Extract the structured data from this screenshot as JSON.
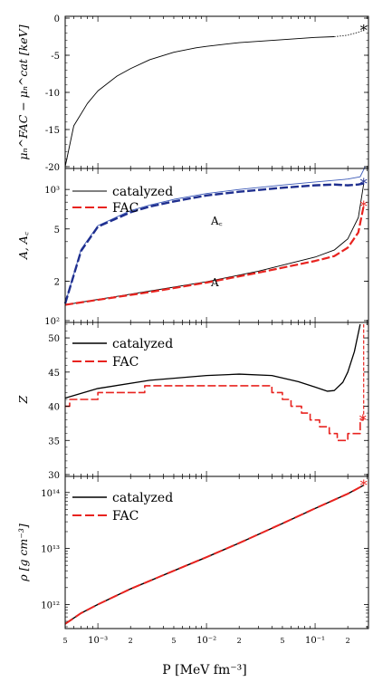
{
  "colors": {
    "catalyzed": "#000000",
    "fac": "#e8231f",
    "ac_thin": "#3c5ab8",
    "ac_fac": "#1f2f8f"
  },
  "xaxis": {
    "label": "P  [MeV fm⁻³]",
    "scale": "log",
    "xlim": [
      0.0005,
      0.31
    ],
    "major_ticks": [
      {
        "v": 0.001,
        "label": "10⁻³"
      },
      {
        "v": 0.01,
        "label": "10⁻²"
      },
      {
        "v": 0.1,
        "label": "10⁻¹"
      }
    ],
    "minor_label_ticks": [
      {
        "v": 0.0005,
        "label": "5"
      },
      {
        "v": 0.002,
        "label": "2"
      },
      {
        "v": 0.005,
        "label": "5"
      },
      {
        "v": 0.02,
        "label": "2"
      },
      {
        "v": 0.05,
        "label": "5"
      },
      {
        "v": 0.2,
        "label": "2"
      }
    ]
  },
  "chart_data": [
    {
      "type": "line",
      "ylabel": "μₙ^FAC − μₙ^cat  [keV]",
      "ylim": [
        -20,
        0
      ],
      "yticks": [
        0,
        -5,
        -10,
        -15,
        -20
      ],
      "ytick_labels": [
        "0",
        "-5",
        "-10",
        "-15",
        "-20"
      ],
      "series": [
        {
          "x": [
            0.0005,
            0.0006,
            0.0008,
            0.001,
            0.0015,
            0.002,
            0.003,
            0.005,
            0.008,
            0.01,
            0.02,
            0.05,
            0.1,
            0.15
          ],
          "y": [
            -20,
            -14.5,
            -11.5,
            -9.8,
            -7.8,
            -6.8,
            -5.6,
            -4.6,
            -4.0,
            -3.8,
            -3.3,
            -2.9,
            -2.6,
            -2.5
          ]
        },
        {
          "x": [
            0.15,
            0.2,
            0.25,
            0.28
          ],
          "y": [
            -2.5,
            -2.3,
            -1.9,
            -1.6
          ]
        }
      ],
      "markers": [
        {
          "x": 0.28,
          "y": -1.6,
          "symbol": "*"
        }
      ]
    },
    {
      "type": "line",
      "ylabel": "A, A꜀",
      "yscale": "log",
      "ylim": [
        100,
        1400
      ],
      "yticks": [
        100,
        200,
        500,
        1000
      ],
      "ytick_labels": [
        "10²",
        "2",
        "5",
        "10³"
      ],
      "annotations": [
        {
          "text": "A꜀",
          "x": 0.016,
          "y": 1060
        },
        {
          "text": "A",
          "x": 0.016,
          "y": 255
        }
      ],
      "legend": {
        "position": "top-left",
        "entries": [
          "catalyzed",
          "FAC"
        ]
      },
      "series": [
        {
          "name": "catalyzed",
          "x": [
            0.0005,
            0.001,
            0.003,
            0.01,
            0.03,
            0.1,
            0.15,
            0.2,
            0.25,
            0.28
          ],
          "y": [
            132,
            145,
            168,
            198,
            238,
            305,
            345,
            420,
            610,
            1100
          ]
        },
        {
          "name": "FAC",
          "x": [
            0.0005,
            0.001,
            0.003,
            0.01,
            0.03,
            0.1,
            0.15,
            0.2,
            0.25,
            0.28
          ],
          "y": [
            132,
            144,
            165,
            195,
            232,
            285,
            310,
            360,
            470,
            750
          ]
        },
        {
          "x": [
            0.0005,
            0.0007,
            0.001,
            0.002,
            0.003,
            0.005,
            0.01,
            0.02,
            0.05,
            0.1,
            0.2,
            0.26,
            0.29
          ],
          "y": [
            135,
            350,
            530,
            690,
            760,
            840,
            930,
            1000,
            1080,
            1140,
            1200,
            1250,
            1500
          ]
        },
        {
          "x": [
            0.0005,
            0.0007,
            0.001,
            0.002,
            0.003,
            0.005,
            0.01,
            0.02,
            0.05,
            0.1,
            0.15,
            0.2,
            0.25,
            0.28
          ],
          "y": [
            135,
            340,
            520,
            670,
            740,
            810,
            900,
            960,
            1030,
            1075,
            1090,
            1075,
            1090,
            1110
          ]
        }
      ],
      "markers": [
        {
          "x": 0.28,
          "y": 1110,
          "symbol": "*"
        },
        {
          "x": 0.28,
          "y": 750,
          "symbol": "*"
        }
      ]
    },
    {
      "type": "line",
      "ylabel": "Z",
      "ylim": [
        30,
        52
      ],
      "yticks": [
        30,
        35,
        40,
        45,
        50
      ],
      "ytick_labels": [
        "30",
        "35",
        "40",
        "45",
        "50"
      ],
      "legend": {
        "position": "top-left",
        "entries": [
          "catalyzed",
          "FAC"
        ]
      },
      "series": [
        {
          "name": "catalyzed",
          "x": [
            0.0005,
            0.001,
            0.003,
            0.01,
            0.02,
            0.04,
            0.07,
            0.1,
            0.13,
            0.15,
            0.18,
            0.2,
            0.23,
            0.26
          ],
          "y": [
            41.2,
            42.6,
            43.8,
            44.5,
            44.7,
            44.5,
            43.6,
            42.8,
            42.2,
            42.3,
            43.5,
            45,
            48,
            52
          ]
        },
        {
          "name": "FAC",
          "x": [
            0.0005,
            0.00055,
            0.00055,
            0.001,
            0.001,
            0.0027,
            0.0027,
            0.04,
            0.04,
            0.05,
            0.05,
            0.06,
            0.06,
            0.075,
            0.075,
            0.09,
            0.09,
            0.11,
            0.11,
            0.135,
            0.135,
            0.16,
            0.16,
            0.2,
            0.2,
            0.26,
            0.26,
            0.28
          ],
          "y": [
            40,
            40,
            41,
            41,
            42,
            42,
            43,
            43,
            42,
            42,
            41,
            41,
            40,
            40,
            39,
            39,
            38,
            38,
            37,
            37,
            36,
            36,
            35,
            35,
            36,
            36,
            38,
            38
          ]
        },
        {
          "x": [
            0.28,
            0.28
          ],
          "y": [
            38,
            52
          ]
        }
      ],
      "markers": [
        {
          "x": 0.275,
          "y": 38,
          "symbol": "*"
        }
      ]
    },
    {
      "type": "line",
      "ylabel": "ρ  [g cm⁻³]",
      "yscale": "log",
      "ylim": [
        400000000000.0,
        180000000000000.0
      ],
      "yticks": [
        1000000000000.0,
        10000000000000.0,
        100000000000000.0
      ],
      "ytick_labels": [
        "10¹²",
        "10¹³",
        "10¹⁴"
      ],
      "legend": {
        "position": "top-left",
        "entries": [
          "catalyzed",
          "FAC"
        ]
      },
      "series": [
        {
          "name": "catalyzed",
          "x": [
            0.0005,
            0.0007,
            0.001,
            0.002,
            0.005,
            0.01,
            0.02,
            0.05,
            0.1,
            0.2,
            0.28
          ],
          "y": [
            450000000000.0,
            700000000000.0,
            1000000000000.0,
            1900000000000.0,
            4000000000000.0,
            7000000000000.0,
            12500000000000.0,
            28000000000000.0,
            52000000000000.0,
            95000000000000.0,
            135000000000000.0
          ]
        },
        {
          "name": "FAC",
          "x": [
            0.0005,
            0.0007,
            0.001,
            0.002,
            0.005,
            0.01,
            0.02,
            0.05,
            0.1,
            0.2,
            0.28
          ],
          "y": [
            450000000000.0,
            700000000000.0,
            1000000000000.0,
            1900000000000.0,
            4000000000000.0,
            7000000000000.0,
            12500000000000.0,
            28000000000000.0,
            52000000000000.0,
            95000000000000.0,
            135000000000000.0
          ]
        }
      ],
      "markers": [
        {
          "x": 0.28,
          "y": 135000000000000.0,
          "symbol": "*"
        }
      ]
    }
  ]
}
